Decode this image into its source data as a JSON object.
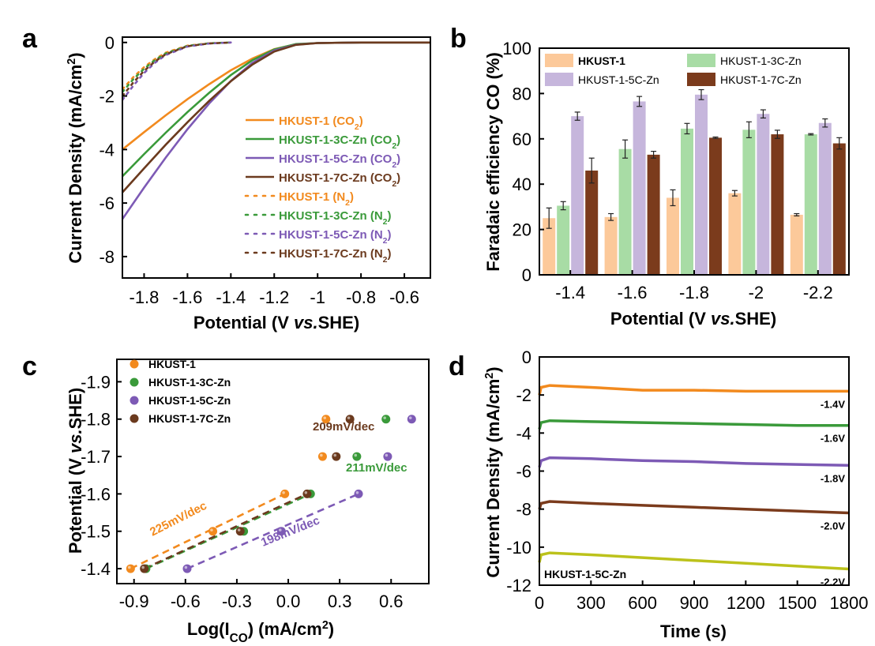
{
  "panels": {
    "a": {
      "letter": "a"
    },
    "b": {
      "letter": "b"
    },
    "c": {
      "letter": "c"
    },
    "d": {
      "letter": "d"
    }
  },
  "chart_data": [
    {
      "panel": "a",
      "type": "line",
      "xlabel": "Potential (V vs.SHE)",
      "xlabel_parts": [
        "Potential (V ",
        "vs.",
        "SHE)"
      ],
      "ylabel": "Current Density (mA/cm2)",
      "ylabel_parts": [
        "Current Density (mA/cm",
        "2",
        ")"
      ],
      "xlim": [
        -1.9,
        -0.48
      ],
      "ylim": [
        -8.8,
        0.2
      ],
      "x_ticks": [
        -1.8,
        -1.6,
        -1.4,
        -1.2,
        -1.0,
        -0.8,
        -0.6
      ],
      "x_tick_labels": [
        "-1.8",
        "-1.6",
        "-1.4",
        "-1.2",
        "-1",
        "-0.8",
        "-0.6"
      ],
      "y_ticks": [
        0,
        -2,
        -4,
        -6,
        -8
      ],
      "y_tick_labels": [
        "0",
        "-2",
        "-4",
        "-6",
        "-8"
      ],
      "series": [
        {
          "name": "HKUST-1 (CO2)",
          "label_parts": [
            "HKUST-1 (CO",
            "2",
            ")"
          ],
          "color": "#f28a1e",
          "dash": false,
          "points": [
            [
              -1.9,
              -4.0
            ],
            [
              -1.8,
              -3.35
            ],
            [
              -1.7,
              -2.72
            ],
            [
              -1.6,
              -2.12
            ],
            [
              -1.5,
              -1.56
            ],
            [
              -1.4,
              -1.04
            ],
            [
              -1.3,
              -0.6
            ],
            [
              -1.2,
              -0.25
            ],
            [
              -1.1,
              -0.07
            ],
            [
              -1.0,
              -0.02
            ],
            [
              -0.8,
              0.0
            ],
            [
              -0.48,
              0.0
            ]
          ]
        },
        {
          "name": "HKUST-1-3C-Zn (CO2)",
          "label_parts": [
            "HKUST-1-3C-Zn (CO",
            "2",
            ")"
          ],
          "color": "#3a9a3a",
          "dash": false,
          "points": [
            [
              -1.9,
              -5.0
            ],
            [
              -1.8,
              -4.17
            ],
            [
              -1.7,
              -3.37
            ],
            [
              -1.6,
              -2.6
            ],
            [
              -1.5,
              -1.88
            ],
            [
              -1.4,
              -1.22
            ],
            [
              -1.3,
              -0.66
            ],
            [
              -1.2,
              -0.26
            ],
            [
              -1.1,
              -0.06
            ],
            [
              -1.0,
              -0.02
            ],
            [
              -0.8,
              0.0
            ],
            [
              -0.48,
              0.0
            ]
          ]
        },
        {
          "name": "HKUST-1-5C-Zn (CO2)",
          "label_parts": [
            "HKUST-1-5C-Zn (CO",
            "2",
            ")"
          ],
          "color": "#7d5ab5",
          "dash": false,
          "points": [
            [
              -1.9,
              -6.6
            ],
            [
              -1.8,
              -5.42
            ],
            [
              -1.7,
              -4.3
            ],
            [
              -1.6,
              -3.24
            ],
            [
              -1.5,
              -2.28
            ],
            [
              -1.4,
              -1.44
            ],
            [
              -1.3,
              -0.76
            ],
            [
              -1.2,
              -0.3
            ],
            [
              -1.1,
              -0.08
            ],
            [
              -1.0,
              -0.02
            ],
            [
              -0.8,
              0.0
            ],
            [
              -0.48,
              0.0
            ]
          ]
        },
        {
          "name": "HKUST-1-7C-Zn (CO2)",
          "label_parts": [
            "HKUST-1-7C-Zn (CO",
            "2",
            ")"
          ],
          "color": "#6b3a1e",
          "dash": false,
          "points": [
            [
              -1.9,
              -5.6
            ],
            [
              -1.8,
              -4.7
            ],
            [
              -1.7,
              -3.82
            ],
            [
              -1.6,
              -2.98
            ],
            [
              -1.5,
              -2.18
            ],
            [
              -1.4,
              -1.45
            ],
            [
              -1.3,
              -0.82
            ],
            [
              -1.2,
              -0.34
            ],
            [
              -1.1,
              -0.09
            ],
            [
              -1.0,
              -0.02
            ],
            [
              -0.8,
              0.0
            ],
            [
              -0.48,
              0.0
            ]
          ]
        },
        {
          "name": "HKUST-1 (N2)",
          "label_parts": [
            "HKUST-1 (N",
            "2",
            ")"
          ],
          "color": "#f28a1e",
          "dash": true,
          "points": [
            [
              -1.9,
              -1.75
            ],
            [
              -1.85,
              -1.3
            ],
            [
              -1.8,
              -0.92
            ],
            [
              -1.75,
              -0.62
            ],
            [
              -1.7,
              -0.38
            ],
            [
              -1.6,
              -0.12
            ],
            [
              -1.5,
              -0.03
            ],
            [
              -1.4,
              0.0
            ]
          ]
        },
        {
          "name": "HKUST-1-3C-Zn (N2)",
          "label_parts": [
            "HKUST-1-3C-Zn (N",
            "2",
            ")"
          ],
          "color": "#3a9a3a",
          "dash": true,
          "points": [
            [
              -1.9,
              -1.85
            ],
            [
              -1.85,
              -1.38
            ],
            [
              -1.8,
              -0.98
            ],
            [
              -1.75,
              -0.66
            ],
            [
              -1.7,
              -0.41
            ],
            [
              -1.6,
              -0.13
            ],
            [
              -1.5,
              -0.03
            ],
            [
              -1.4,
              0.0
            ]
          ]
        },
        {
          "name": "HKUST-1-5C-Zn (N2)",
          "label_parts": [
            "HKUST-1-5C-Zn (N",
            "2",
            ")"
          ],
          "color": "#7d5ab5",
          "dash": true,
          "points": [
            [
              -1.9,
              -2.15
            ],
            [
              -1.85,
              -1.62
            ],
            [
              -1.8,
              -1.14
            ],
            [
              -1.75,
              -0.76
            ],
            [
              -1.7,
              -0.47
            ],
            [
              -1.6,
              -0.15
            ],
            [
              -1.5,
              -0.04
            ],
            [
              -1.4,
              0.0
            ]
          ]
        },
        {
          "name": "HKUST-1-7C-Zn (N2)",
          "label_parts": [
            "HKUST-1-7C-Zn (N",
            "2",
            ")"
          ],
          "color": "#6b3a1e",
          "dash": true,
          "points": [
            [
              -1.9,
              -2.0
            ],
            [
              -1.85,
              -1.5
            ],
            [
              -1.8,
              -1.06
            ],
            [
              -1.75,
              -0.71
            ],
            [
              -1.7,
              -0.44
            ],
            [
              -1.6,
              -0.14
            ],
            [
              -1.5,
              -0.035
            ],
            [
              -1.4,
              0.0
            ]
          ]
        }
      ]
    },
    {
      "panel": "b",
      "type": "bar",
      "xlabel": "Potential (V vs.SHE)",
      "xlabel_parts": [
        "Potential (V ",
        "vs.",
        "SHE)"
      ],
      "ylabel": "Faradaic efficiency CO (%)",
      "categories": [
        "-1.4",
        "-1.6",
        "-1.8",
        "-2",
        "-2.2"
      ],
      "ylim": [
        0,
        100
      ],
      "y_ticks": [
        0,
        20,
        40,
        60,
        80,
        100
      ],
      "y_tick_labels": [
        "0",
        "20",
        "40",
        "60",
        "80",
        "100"
      ],
      "series": [
        {
          "name": "HKUST-1",
          "color": "#fcc99a",
          "values": [
            25,
            25.5,
            34,
            36,
            26.5
          ],
          "errors": [
            4.5,
            1.5,
            3.5,
            1.2,
            0.5
          ]
        },
        {
          "name": "HKUST-1-3C-Zn",
          "color": "#a8dca5",
          "values": [
            30.5,
            55.5,
            64.5,
            64,
            62
          ],
          "errors": [
            1.8,
            4,
            2.3,
            3.5,
            0.3
          ]
        },
        {
          "name": "HKUST-1-5C-Zn",
          "color": "#c6b6dc",
          "values": [
            70,
            76.5,
            79.5,
            71,
            67
          ],
          "errors": [
            1.8,
            2.2,
            2.2,
            1.8,
            1.8
          ]
        },
        {
          "name": "HKUST-1-7C-Zn",
          "color": "#7b3b1c",
          "values": [
            46,
            53,
            60.5,
            62,
            58
          ],
          "errors": [
            5.5,
            1.5,
            0.3,
            1.8,
            2.5
          ]
        }
      ]
    },
    {
      "panel": "c",
      "type": "scatter",
      "xlabel": "Log(ICO) (mA/cm2)",
      "xlabel_parts": [
        "Log(I",
        "CO",
        ") (mA/cm",
        "2",
        ")"
      ],
      "ylabel": "Potential (V vs.SHE)",
      "ylabel_parts": [
        "Potential (V ",
        "vs.",
        "SHE)"
      ],
      "xlim": [
        -1.0,
        0.82
      ],
      "ylim": [
        -1.36,
        -1.96
      ],
      "x_ticks": [
        -0.9,
        -0.6,
        -0.3,
        0.0,
        0.3,
        0.6
      ],
      "x_tick_labels": [
        "-0.9",
        "-0.6",
        "-0.3",
        "0.0",
        "0.3",
        "0.6"
      ],
      "y_ticks": [
        -1.4,
        -1.5,
        -1.6,
        -1.7,
        -1.8,
        -1.9
      ],
      "y_tick_labels": [
        "-1.4",
        "-1.5",
        "-1.6",
        "-1.7",
        "-1.8",
        "-1.9"
      ],
      "series": [
        {
          "name": "HKUST-1",
          "color": "#f28a1e",
          "points": [
            [
              -0.92,
              -1.4
            ],
            [
              -0.44,
              -1.5
            ],
            [
              -0.02,
              -1.6
            ],
            [
              0.2,
              -1.7
            ],
            [
              0.22,
              -1.8
            ]
          ],
          "fit": [
            [
              -0.92,
              -1.4
            ],
            [
              -0.02,
              -1.6
            ]
          ],
          "slope_label": "225mV/dec"
        },
        {
          "name": "HKUST-1-3C-Zn",
          "color": "#3a9a3a",
          "points": [
            [
              -0.83,
              -1.4
            ],
            [
              -0.26,
              -1.5
            ],
            [
              0.13,
              -1.6
            ],
            [
              0.4,
              -1.7
            ],
            [
              0.57,
              -1.8
            ]
          ],
          "fit": [
            [
              -0.83,
              -1.4
            ],
            [
              0.13,
              -1.6
            ]
          ],
          "slope_label": "211mV/dec"
        },
        {
          "name": "HKUST-1-5C-Zn",
          "color": "#7d5ab5",
          "points": [
            [
              -0.59,
              -1.4
            ],
            [
              -0.04,
              -1.5
            ],
            [
              0.41,
              -1.6
            ],
            [
              0.58,
              -1.7
            ],
            [
              0.72,
              -1.8
            ]
          ],
          "fit": [
            [
              -0.59,
              -1.4
            ],
            [
              0.41,
              -1.6
            ]
          ],
          "slope_label": "198mV/dec"
        },
        {
          "name": "HKUST-1-7C-Zn",
          "color": "#6b3a1e",
          "points": [
            [
              -0.84,
              -1.4
            ],
            [
              -0.28,
              -1.5
            ],
            [
              0.11,
              -1.6
            ],
            [
              0.28,
              -1.7
            ],
            [
              0.36,
              -1.8
            ]
          ],
          "fit": [
            [
              -0.84,
              -1.4
            ],
            [
              0.11,
              -1.6
            ]
          ],
          "slope_label": "209mV/dec"
        }
      ]
    },
    {
      "panel": "d",
      "type": "line",
      "xlabel": "Time (s)",
      "ylabel": "Current Density (mA/cm2)",
      "ylabel_parts": [
        "Current Density (mA/cm",
        "2",
        ")"
      ],
      "annotation": "HKUST-1-5C-Zn",
      "xlim": [
        0,
        1800
      ],
      "ylim": [
        -12,
        0
      ],
      "x_ticks": [
        0,
        300,
        600,
        900,
        1200,
        1500,
        1800
      ],
      "x_tick_labels": [
        "0",
        "300",
        "600",
        "900",
        "1200",
        "1500",
        "1800"
      ],
      "y_ticks": [
        0,
        -2,
        -4,
        -6,
        -8,
        -10,
        -12
      ],
      "y_tick_labels": [
        "0",
        "-2",
        "-4",
        "-6",
        "-8",
        "-10",
        "-12"
      ],
      "series": [
        {
          "name": "-1.4V",
          "color": "#f28a1e",
          "points": [
            [
              0,
              -2.0
            ],
            [
              10,
              -1.6
            ],
            [
              60,
              -1.5
            ],
            [
              300,
              -1.6
            ],
            [
              600,
              -1.75
            ],
            [
              900,
              -1.75
            ],
            [
              1200,
              -1.8
            ],
            [
              1500,
              -1.8
            ],
            [
              1800,
              -1.8
            ]
          ]
        },
        {
          "name": "-1.6V",
          "color": "#3a9a3a",
          "points": [
            [
              0,
              -3.8
            ],
            [
              10,
              -3.45
            ],
            [
              60,
              -3.35
            ],
            [
              300,
              -3.4
            ],
            [
              600,
              -3.45
            ],
            [
              900,
              -3.5
            ],
            [
              1200,
              -3.55
            ],
            [
              1500,
              -3.6
            ],
            [
              1800,
              -3.6
            ]
          ]
        },
        {
          "name": "-1.8V",
          "color": "#7d5ab5",
          "points": [
            [
              0,
              -5.8
            ],
            [
              10,
              -5.45
            ],
            [
              60,
              -5.3
            ],
            [
              300,
              -5.35
            ],
            [
              600,
              -5.45
            ],
            [
              900,
              -5.5
            ],
            [
              1200,
              -5.6
            ],
            [
              1500,
              -5.65
            ],
            [
              1800,
              -5.7
            ]
          ]
        },
        {
          "name": "-2.0V",
          "color": "#7b3b1c",
          "points": [
            [
              0,
              -8.0
            ],
            [
              10,
              -7.7
            ],
            [
              60,
              -7.6
            ],
            [
              300,
              -7.7
            ],
            [
              600,
              -7.8
            ],
            [
              900,
              -7.9
            ],
            [
              1200,
              -8.0
            ],
            [
              1500,
              -8.1
            ],
            [
              1800,
              -8.2
            ]
          ]
        },
        {
          "name": "-2.2V",
          "color": "#bcc21b",
          "points": [
            [
              0,
              -10.8
            ],
            [
              10,
              -10.4
            ],
            [
              60,
              -10.3
            ],
            [
              300,
              -10.4
            ],
            [
              600,
              -10.55
            ],
            [
              900,
              -10.7
            ],
            [
              1200,
              -10.85
            ],
            [
              1500,
              -11.0
            ],
            [
              1800,
              -11.15
            ]
          ]
        }
      ]
    }
  ]
}
